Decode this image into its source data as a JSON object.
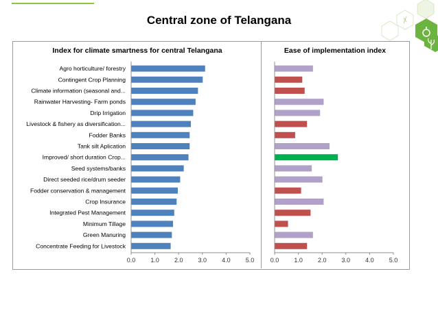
{
  "page": {
    "title": "Central zone of Telangana"
  },
  "colors": {
    "blue": "#4f81bd",
    "lavender": "#b1a0c7",
    "red": "#c0504d",
    "green": "#00b050",
    "accent": "#8cc63f"
  },
  "chart_data": [
    {
      "type": "bar",
      "orientation": "horizontal",
      "title": "Index for climate smartness for central Telangana",
      "categories": [
        "Agro  horticulture/ forestry",
        "Contingent Crop  Planning",
        "Climate information (seasonal and...",
        "Rainwater Harvesting- Farm ponds",
        "Drip  Irrigation",
        "Livestock & fishery as diversification...",
        "Fodder Banks",
        "Tank silt Aplication",
        "Improved/ short duration Crop...",
        "Seed systems/banks",
        "Direct seeded rice/drum seeder",
        "Fodder conservation & management",
        "Crop  Insurance",
        "Integrated Pest Management",
        "Minimum  Tillage",
        "Green Manuring",
        "Concentrate Feeding for Livestock"
      ],
      "values": [
        3.1,
        3.0,
        2.8,
        2.7,
        2.6,
        2.5,
        2.45,
        2.45,
        2.4,
        2.2,
        2.05,
        1.95,
        1.9,
        1.8,
        1.75,
        1.7,
        1.65
      ],
      "bar_colors": [
        "blue",
        "blue",
        "blue",
        "blue",
        "blue",
        "blue",
        "blue",
        "blue",
        "blue",
        "blue",
        "blue",
        "blue",
        "blue",
        "blue",
        "blue",
        "blue",
        "blue"
      ],
      "xlim": [
        0,
        5
      ],
      "ticks": [
        "0.0",
        "1.0",
        "2.0",
        "3.0",
        "4.0",
        "5.0"
      ]
    },
    {
      "type": "bar",
      "orientation": "horizontal",
      "title": "Ease of implementation index",
      "categories": [
        "Agro  horticulture/ forestry",
        "Contingent Crop  Planning",
        "Climate information (seasonal and...",
        "Rainwater Harvesting- Farm ponds",
        "Drip  Irrigation",
        "Livestock & fishery as diversification...",
        "Fodder Banks",
        "Tank silt Aplication",
        "Improved/ short duration Crop...",
        "Seed systems/banks",
        "Direct seeded rice/drum seeder",
        "Fodder conservation & management",
        "Crop  Insurance",
        "Integrated Pest Management",
        "Minimum  Tillage",
        "Green Manuring",
        "Concentrate Feeding for Livestock"
      ],
      "values": [
        1.6,
        1.15,
        1.25,
        2.05,
        1.9,
        1.35,
        0.85,
        2.3,
        2.65,
        1.55,
        2.0,
        1.1,
        2.05,
        1.5,
        0.55,
        1.6,
        1.35
      ],
      "bar_colors": [
        "lavender",
        "red",
        "red",
        "lavender",
        "lavender",
        "red",
        "red",
        "lavender",
        "green",
        "lavender",
        "lavender",
        "red",
        "lavender",
        "red",
        "red",
        "lavender",
        "red"
      ],
      "xlim": [
        0,
        5
      ],
      "ticks": [
        "0.0",
        "1.0",
        "2.0",
        "3.0",
        "4.0",
        "5.0"
      ]
    }
  ]
}
